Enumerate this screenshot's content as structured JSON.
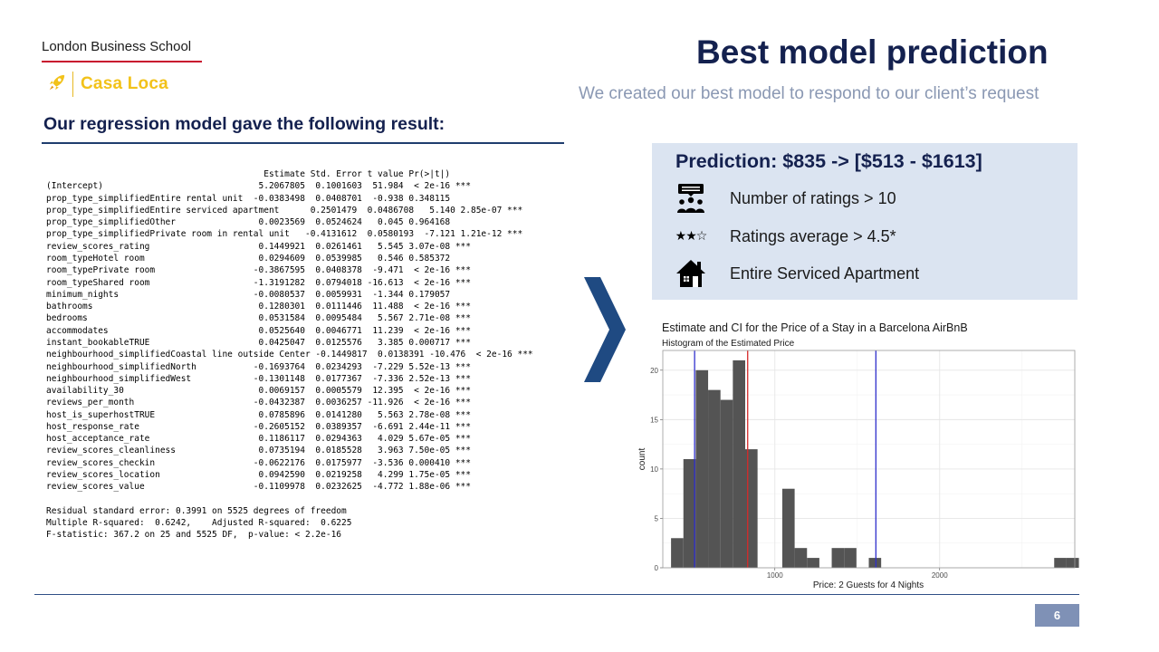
{
  "header": {
    "school": "London Business School",
    "team": "Casa Loca",
    "title": "Best model prediction",
    "subtitle": "We created our best model to respond to our client’s request"
  },
  "regression": {
    "heading": "Our regression model gave the following  result:",
    "output_lines": [
      "                                          Estimate Std. Error t value Pr(>|t|)    ",
      "(Intercept)                              5.2067805  0.1001603  51.984  < 2e-16 ***",
      "prop_type_simplifiedEntire rental unit  -0.0383498  0.0408701  -0.938 0.348115    ",
      "prop_type_simplifiedEntire serviced apartment      0.2501479  0.0486708   5.140 2.85e-07 ***",
      "prop_type_simplifiedOther                0.0023569  0.0524624   0.045 0.964168    ",
      "prop_type_simplifiedPrivate room in rental unit   -0.4131612  0.0580193  -7.121 1.21e-12 ***",
      "review_scores_rating                     0.1449921  0.0261461   5.545 3.07e-08 ***",
      "room_typeHotel room                      0.0294609  0.0539985   0.546 0.585372    ",
      "room_typePrivate room                   -0.3867595  0.0408378  -9.471  < 2e-16 ***",
      "room_typeShared room                    -1.3191282  0.0794018 -16.613  < 2e-16 ***",
      "minimum_nights                          -0.0080537  0.0059931  -1.344 0.179057    ",
      "bathrooms                                0.1280301  0.0111446  11.488  < 2e-16 ***",
      "bedrooms                                 0.0531584  0.0095484   5.567 2.71e-08 ***",
      "accommodates                             0.0525640  0.0046771  11.239  < 2e-16 ***",
      "instant_bookableTRUE                     0.0425047  0.0125576   3.385 0.000717 ***",
      "neighbourhood_simplifiedCoastal line outside Center -0.1449817  0.0138391 -10.476  < 2e-16 ***",
      "neighbourhood_simplifiedNorth           -0.1693764  0.0234293  -7.229 5.52e-13 ***",
      "neighbourhood_simplifiedWest            -0.1301148  0.0177367  -7.336 2.52e-13 ***",
      "availability_30                          0.0069157  0.0005579  12.395  < 2e-16 ***",
      "reviews_per_month                       -0.0432387  0.0036257 -11.926  < 2e-16 ***",
      "host_is_superhostTRUE                    0.0785896  0.0141280   5.563 2.78e-08 ***",
      "host_response_rate                      -0.2605152  0.0389357  -6.691 2.44e-11 ***",
      "host_acceptance_rate                     0.1186117  0.0294363   4.029 5.67e-05 ***",
      "review_scores_cleanliness                0.0735194  0.0185528   3.963 7.50e-05 ***",
      "review_scores_checkin                   -0.0622176  0.0175977  -3.536 0.000410 ***",
      "review_scores_location                   0.0942590  0.0219258   4.299 1.75e-05 ***",
      "review_scores_value                     -0.1109978  0.0232625  -4.772 1.88e-06 ***",
      "",
      "Residual standard error: 0.3991 on 5525 degrees of freedom",
      "Multiple R-squared:  0.6242,    Adjusted R-squared:  0.6225",
      "F-statistic: 367.2 on 25 and 5525 DF,  p-value: < 2.2e-16"
    ]
  },
  "prediction": {
    "title": "Prediction: $835 -> [$513 - $1613]",
    "criteria": [
      {
        "icon": "users-rating-icon",
        "text": "Number of ratings > 10"
      },
      {
        "icon": "stars-icon",
        "text": "Ratings average > 4.5*"
      },
      {
        "icon": "house-icon",
        "text": "Entire Serviced Apartment"
      }
    ],
    "stars_glyph": "★★☆"
  },
  "chart_data": {
    "type": "bar",
    "title": "Estimate and CI for the Price of a Stay in a Barcelona AirBnB",
    "subtitle": "Histogram of the Estimated Price",
    "xlabel": "Price: 2 Guests for 4 Nights",
    "ylabel": "count",
    "xlim": [
      320,
      2820
    ],
    "ylim": [
      0,
      22
    ],
    "x_ticks": [
      1000,
      2000
    ],
    "y_ticks": [
      0,
      5,
      10,
      15,
      20
    ],
    "grid": true,
    "bin_width": 75,
    "bins": [
      {
        "x0": 370,
        "count": 3
      },
      {
        "x0": 445,
        "count": 11
      },
      {
        "x0": 520,
        "count": 20
      },
      {
        "x0": 595,
        "count": 18
      },
      {
        "x0": 670,
        "count": 17
      },
      {
        "x0": 745,
        "count": 21
      },
      {
        "x0": 820,
        "count": 12
      },
      {
        "x0": 1045,
        "count": 8
      },
      {
        "x0": 1120,
        "count": 2
      },
      {
        "x0": 1195,
        "count": 1
      },
      {
        "x0": 1345,
        "count": 2
      },
      {
        "x0": 1420,
        "count": 2
      },
      {
        "x0": 1570,
        "count": 1
      },
      {
        "x0": 2695,
        "count": 1
      },
      {
        "x0": 2770,
        "count": 1
      }
    ],
    "vlines": [
      {
        "x": 513,
        "color": "#2f2fcc"
      },
      {
        "x": 835,
        "color": "#d62a2a"
      },
      {
        "x": 1613,
        "color": "#2f2fcc"
      }
    ],
    "bar_color": "#545454"
  },
  "footer": {
    "page_number": "6"
  }
}
